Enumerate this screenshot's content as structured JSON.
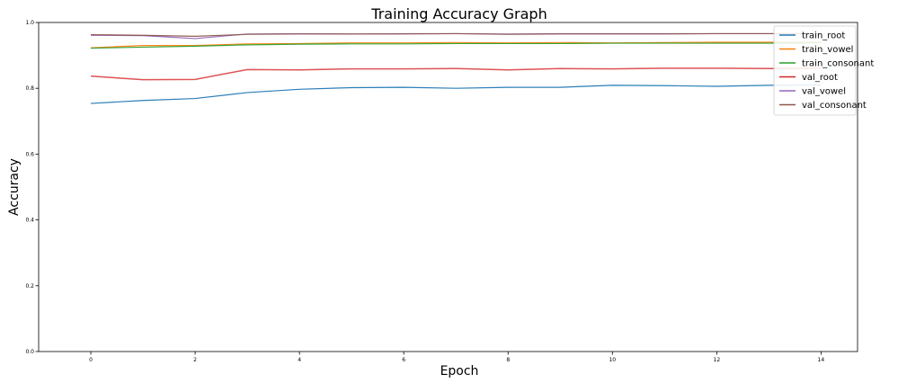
{
  "chart_data": {
    "type": "line",
    "title": "Training Accuracy Graph",
    "xlabel": "Epoch",
    "ylabel": "Accuracy",
    "xlim": [
      -1,
      14.7
    ],
    "ylim": [
      0.0,
      1.0
    ],
    "x_ticks": [
      0,
      2,
      4,
      6,
      8,
      10,
      12,
      14
    ],
    "y_ticks": [
      0.0,
      0.2,
      0.4,
      0.6,
      0.8,
      1.0
    ],
    "grid": false,
    "legend_position": "top-right",
    "x": [
      0,
      1,
      2,
      3,
      4,
      5,
      6,
      7,
      8,
      9,
      10,
      11,
      12,
      13,
      14
    ],
    "series": [
      {
        "name": "train_root",
        "color": "#1f77b4",
        "values": [
          0.754,
          0.763,
          0.769,
          0.787,
          0.797,
          0.802,
          0.803,
          0.8,
          0.803,
          0.803,
          0.809,
          0.808,
          0.806,
          0.809,
          0.81
        ]
      },
      {
        "name": "train_vowel",
        "color": "#ff7f0e",
        "values": [
          0.923,
          0.93,
          0.93,
          0.935,
          0.936,
          0.938,
          0.938,
          0.939,
          0.938,
          0.939,
          0.938,
          0.939,
          0.94,
          0.94,
          0.94
        ]
      },
      {
        "name": "train_consonant",
        "color": "#2ca02c",
        "values": [
          0.922,
          0.925,
          0.928,
          0.932,
          0.934,
          0.935,
          0.935,
          0.936,
          0.936,
          0.936,
          0.937,
          0.937,
          0.937,
          0.937,
          0.938
        ]
      },
      {
        "name": "val_root",
        "color": "#d62728",
        "values": [
          0.837,
          0.826,
          0.827,
          0.857,
          0.856,
          0.859,
          0.859,
          0.86,
          0.856,
          0.86,
          0.859,
          0.861,
          0.861,
          0.86,
          0.861
        ]
      },
      {
        "name": "val_vowel",
        "color": "#9467bd",
        "values": [
          0.961,
          0.96,
          0.951,
          0.965,
          0.966,
          0.965,
          0.966,
          0.966,
          0.965,
          0.966,
          0.966,
          0.966,
          0.966,
          0.966,
          0.966
        ]
      },
      {
        "name": "val_consonant",
        "color": "#8c564b",
        "values": [
          0.963,
          0.961,
          0.958,
          0.964,
          0.965,
          0.965,
          0.965,
          0.966,
          0.964,
          0.965,
          0.965,
          0.965,
          0.966,
          0.966,
          0.966
        ]
      }
    ]
  }
}
